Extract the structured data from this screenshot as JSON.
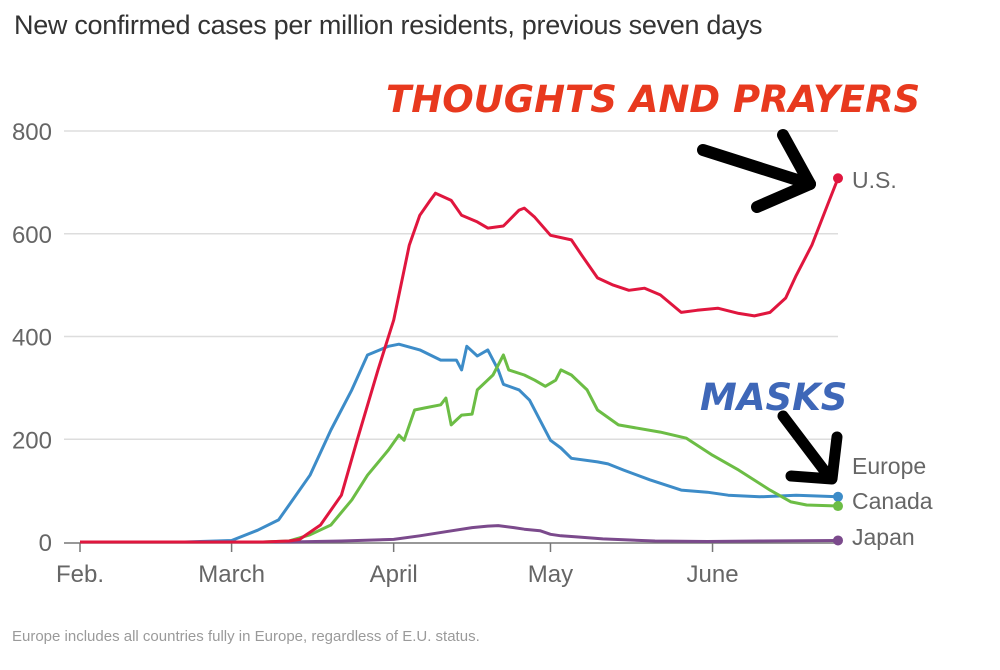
{
  "chart_data": {
    "type": "line",
    "title": "New confirmed cases per million residents, previous seven days",
    "note": "Europe includes all countries fully in Europe, regardless of E.U. status.",
    "x_unit": "days since Feb. 1",
    "xlim": [
      0,
      145
    ],
    "ylim": [
      0,
      800
    ],
    "grid": true,
    "yticks": [
      0,
      200,
      400,
      600,
      800
    ],
    "ytick_labels": [
      "0",
      "200",
      "400",
      "600",
      "800"
    ],
    "xticks": [
      {
        "day": 0,
        "label": "Feb."
      },
      {
        "day": 29,
        "label": "March"
      },
      {
        "day": 60,
        "label": "April"
      },
      {
        "day": 90,
        "label": "May"
      },
      {
        "day": 121,
        "label": "June"
      }
    ],
    "series": [
      {
        "name": "U.S.",
        "color": "#e0163e",
        "x": [
          0,
          35,
          40,
          42,
          46,
          50,
          53,
          57,
          60,
          63,
          65,
          67,
          68,
          71,
          73,
          76,
          78,
          81,
          84,
          85,
          87,
          90,
          94,
          96,
          99,
          102,
          105,
          108,
          111,
          115,
          118,
          122,
          126,
          129,
          132,
          135,
          137,
          140,
          143,
          145
        ],
        "y": [
          0,
          0,
          2,
          5,
          33,
          91,
          198,
          335,
          432,
          578,
          636,
          665,
          679,
          665,
          636,
          623,
          611,
          615,
          646,
          650,
          632,
          597,
          588,
          558,
          514,
          500,
          490,
          494,
          481,
          447,
          451,
          455,
          445,
          440,
          447,
          475,
          519,
          578,
          656,
          708
        ]
      },
      {
        "name": "Europe",
        "color": "#3d8cc8",
        "x": [
          0,
          20,
          29,
          34,
          38,
          40,
          44,
          48,
          52,
          55,
          59,
          61,
          65,
          69,
          72,
          73,
          74,
          76,
          78,
          80,
          81,
          84,
          86,
          88,
          90,
          92,
          94,
          99,
          101,
          104,
          109,
          115,
          120,
          124,
          130,
          137,
          145
        ],
        "y": [
          0,
          0,
          3,
          23,
          43,
          72,
          130,
          218,
          296,
          364,
          381,
          385,
          374,
          354,
          354,
          335,
          381,
          362,
          374,
          335,
          307,
          296,
          276,
          237,
          198,
          183,
          163,
          156,
          152,
          140,
          121,
          101,
          97,
          91,
          88,
          91,
          88
        ]
      },
      {
        "name": "Canada",
        "color": "#6cbd45",
        "x": [
          0,
          35,
          40,
          44,
          48,
          52,
          55,
          59,
          61,
          62,
          64,
          66,
          69,
          70,
          71,
          73,
          75,
          76,
          79,
          81,
          82,
          85,
          87,
          89,
          91,
          92,
          94,
          97,
          99,
          103,
          111,
          116,
          121,
          126,
          132,
          136,
          139,
          145
        ],
        "y": [
          0,
          0,
          2,
          14,
          33,
          82,
          130,
          179,
          208,
          198,
          257,
          261,
          267,
          280,
          228,
          247,
          249,
          296,
          325,
          364,
          335,
          325,
          315,
          303,
          315,
          335,
          325,
          296,
          257,
          228,
          214,
          202,
          169,
          140,
          101,
          78,
          72,
          70
        ]
      },
      {
        "name": "Japan",
        "color": "#7b4a8c",
        "x": [
          0,
          40,
          50,
          60,
          65,
          70,
          75,
          78,
          80,
          83,
          85,
          88,
          90,
          92,
          95,
          100,
          110,
          120,
          130,
          145
        ],
        "y": [
          0,
          0,
          2,
          5,
          12,
          20,
          28,
          31,
          32,
          28,
          25,
          22,
          15,
          12,
          10,
          6,
          2,
          1,
          2,
          3
        ]
      }
    ],
    "annotations": {
      "us": "THOUGHTS AND PRAYERS",
      "masks": "MASKS"
    },
    "annotation_colors": {
      "us": "#e8391e",
      "masks": "#3e67b8"
    }
  }
}
